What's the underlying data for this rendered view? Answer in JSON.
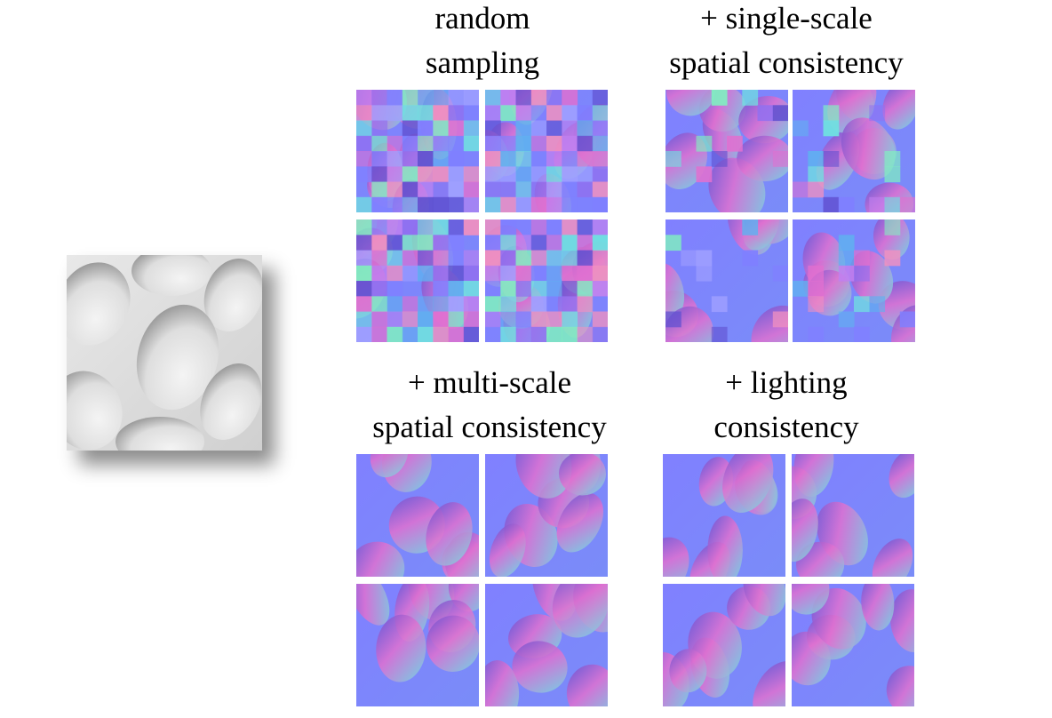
{
  "figure": {
    "input_image": {
      "icon": "grayscale-height-map",
      "bg": "#dcdcdc"
    },
    "panels": [
      {
        "id": "random",
        "caption_lines": [
          "random",
          "sampling"
        ],
        "style": "patchy"
      },
      {
        "id": "single",
        "caption_lines": [
          "+ single-scale",
          "spatial consistency"
        ],
        "style": "partial"
      },
      {
        "id": "multi",
        "caption_lines": [
          "+ multi-scale",
          "spatial consistency"
        ],
        "style": "smooth"
      },
      {
        "id": "light",
        "caption_lines": [
          "+ lighting",
          "consistency"
        ],
        "style": "smooth"
      }
    ],
    "colors": {
      "normal_base": "#8080ff",
      "normal_pink": "#e070d0",
      "normal_cyan": "#70e0e0",
      "normal_violet": "#6050d0"
    }
  }
}
